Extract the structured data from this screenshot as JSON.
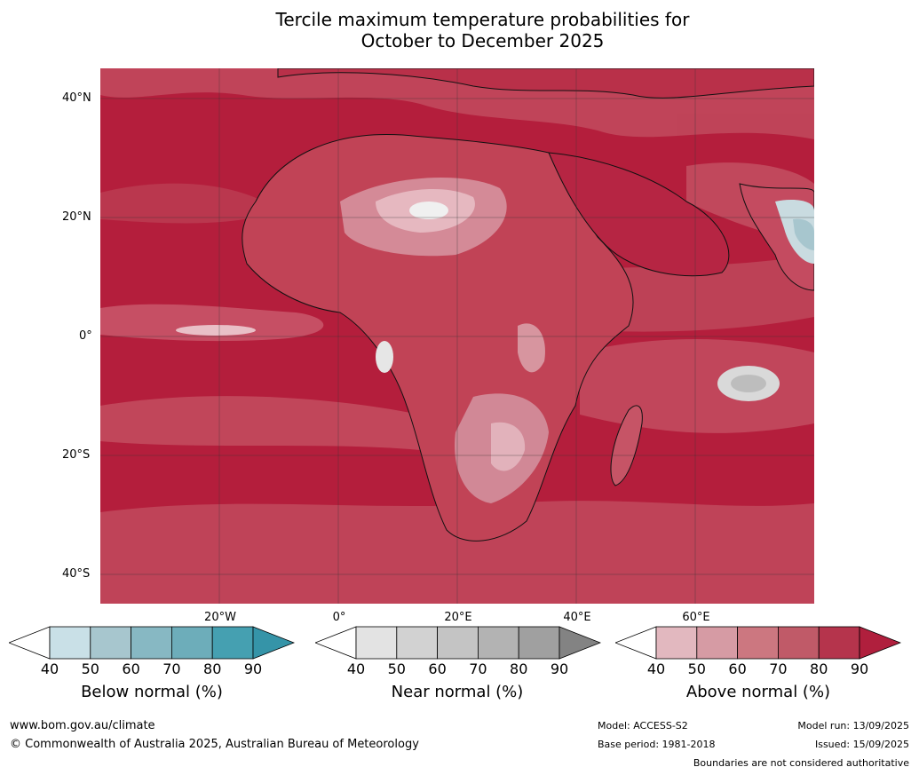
{
  "title_line1": "Tercile maximum temperature probabilities for",
  "title_line2": "October to December 2025",
  "map": {
    "lat_labels": [
      "40°N",
      "20°N",
      "0°",
      "20°S",
      "40°S"
    ],
    "lon_labels": [
      "20°W",
      "0°",
      "20°E",
      "40°E",
      "60°E"
    ]
  },
  "colorbars": [
    {
      "title": "Below normal (%)",
      "ticks": [
        "40",
        "50",
        "60",
        "70",
        "80",
        "90"
      ],
      "colors": [
        "#ffffff",
        "#c9e0e7",
        "#a7c6ce",
        "#87b8c3",
        "#6dadba",
        "#45a0b1",
        "#3594a8"
      ]
    },
    {
      "title": "Near normal (%)",
      "ticks": [
        "40",
        "50",
        "60",
        "70",
        "80",
        "90"
      ],
      "colors": [
        "#ffffff",
        "#e3e3e3",
        "#d2d2d2",
        "#c4c4c4",
        "#b3b3b3",
        "#a0a0a0",
        "#838383"
      ]
    },
    {
      "title": "Above normal (%)",
      "ticks": [
        "40",
        "50",
        "60",
        "70",
        "80",
        "90"
      ],
      "colors": [
        "#ffffff",
        "#e2b8bf",
        "#d69ba4",
        "#cc7780",
        "#c05a68",
        "#b5344c",
        "#b01f3d"
      ]
    }
  ],
  "footer": {
    "website": "www.bom.gov.au/climate",
    "copyright": "© Commonwealth of Australia 2025, Australian Bureau of Meteorology",
    "model": "Model: ACCESS-S2",
    "base_period": "Base period: 1981-2018",
    "model_run": "Model run: 13/09/2025",
    "issued": "Issued: 15/09/2025",
    "boundaries_note": "Boundaries are not considered authoritative"
  },
  "colors": {
    "above_dominant": "#b61d3b",
    "ocean_field": "#c3394f"
  }
}
